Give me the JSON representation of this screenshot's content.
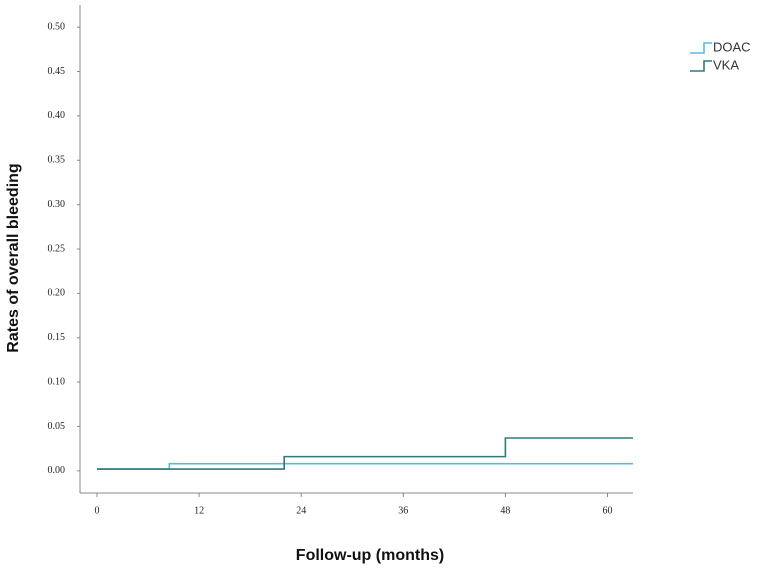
{
  "chart_data": {
    "type": "line",
    "step": "post",
    "xlabel": "Follow-up (months)",
    "ylabel": "Rates of overall bleeding",
    "xlim": [
      -2,
      63
    ],
    "xticks": [
      0,
      12,
      24,
      36,
      48,
      60
    ],
    "ylim": [
      -0.025,
      0.525
    ],
    "yticks": [
      {
        "value": 0,
        "label": "0.00"
      },
      0.05,
      {
        "value": 0.1,
        "label": "0.10"
      },
      0.15,
      {
        "value": 0.2,
        "label": "0.20"
      },
      0.25,
      {
        "value": 0.3,
        "label": "0.30"
      },
      0.35,
      {
        "value": 0.4,
        "label": "0.40"
      },
      0.45,
      {
        "value": 0.5,
        "label": "0.50"
      }
    ],
    "grid": false,
    "legend": "upper right",
    "series": [
      {
        "name": "DOAC",
        "color": "#5bb8e6",
        "x": [
          0,
          8.5,
          63
        ],
        "values": [
          0.002,
          0.008,
          0.008
        ]
      },
      {
        "name": "VKA",
        "color": "#2e7b7b",
        "x": [
          0,
          22,
          48,
          63
        ],
        "values": [
          0.002,
          0.016,
          0.037,
          0.037
        ]
      }
    ]
  }
}
